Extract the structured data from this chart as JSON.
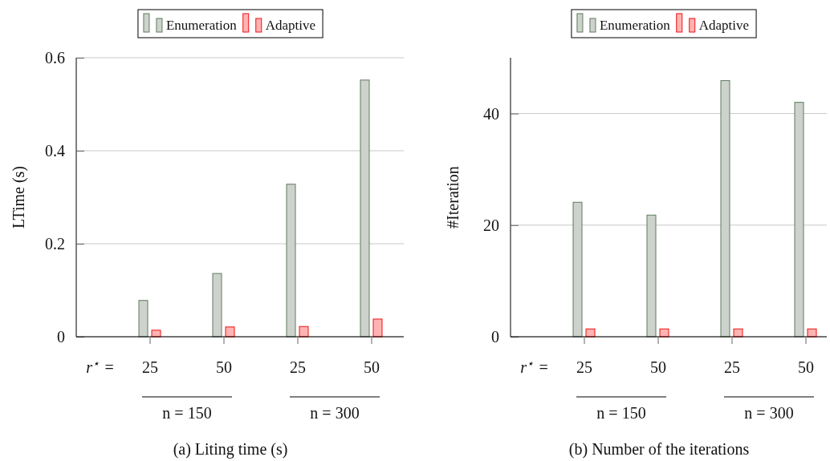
{
  "chart_data": [
    {
      "type": "bar",
      "title": "(a) Liting time (s)",
      "ylabel": "LTime (s)",
      "categories": [
        "25",
        "50",
        "25",
        "50"
      ],
      "series": [
        {
          "name": "Enumeration",
          "color": "#cdd3cc",
          "values": [
            0.078,
            0.136,
            0.328,
            0.552
          ]
        },
        {
          "name": "Adaptive",
          "color": "#ffb3b3",
          "values": [
            0.014,
            0.021,
            0.022,
            0.038
          ]
        }
      ],
      "ylim": [
        0,
        0.6
      ],
      "yticks": [
        0,
        0.2,
        0.4,
        0.6
      ],
      "grid": "y",
      "legend": "top",
      "annotations": [
        "r$^{⋆}$ =",
        "n = 150",
        "n = 300"
      ]
    },
    {
      "type": "bar",
      "title": "(b) Number of the iterations",
      "ylabel": "#Iteration",
      "categories": [
        "25",
        "50",
        "25",
        "50"
      ],
      "series": [
        {
          "name": "Enumeration",
          "color": "#cdd3cc",
          "values": [
            24.1,
            21.8,
            45.9,
            42.0
          ]
        },
        {
          "name": "Adaptive",
          "color": "#ffb3b3",
          "values": [
            1.4,
            1.4,
            1.4,
            1.4
          ]
        }
      ],
      "ylim": [
        0,
        50
      ],
      "yticks": [
        0,
        20,
        40
      ],
      "grid": "y",
      "legend": "top",
      "annotations": [
        "r$^{⋆}$ =",
        "n = 150",
        "n = 300"
      ]
    }
  ]
}
